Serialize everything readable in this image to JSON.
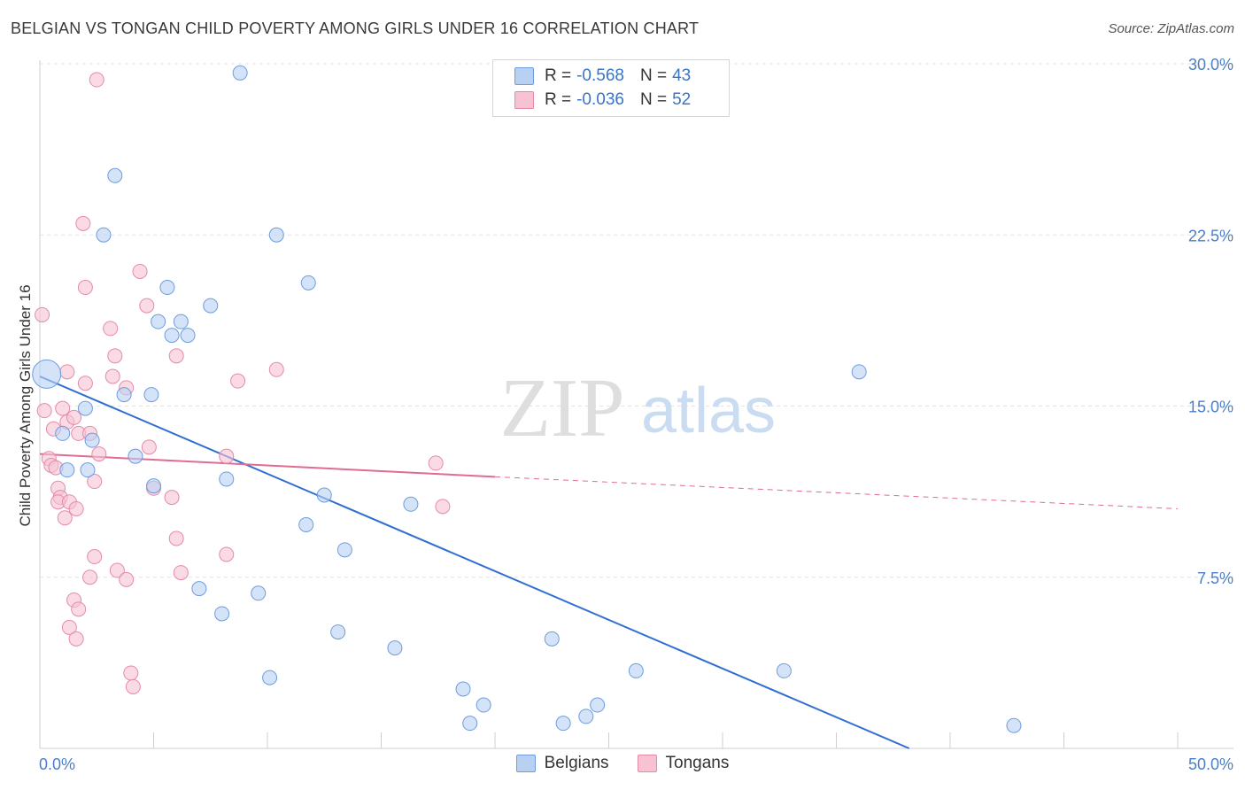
{
  "header": {
    "title": "BELGIAN VS TONGAN CHILD POVERTY AMONG GIRLS UNDER 16 CORRELATION CHART",
    "source": "Source: ZipAtlas.com"
  },
  "watermark": {
    "zip": "ZIP",
    "atlas": "atlas"
  },
  "legend": {
    "rows": [
      {
        "r_label": "R =",
        "r_value": "-0.568",
        "n_label": "N =",
        "n_value": "43"
      },
      {
        "r_label": "R =",
        "r_value": "-0.036",
        "n_label": "N =",
        "n_value": "52"
      }
    ]
  },
  "bottom_legend": {
    "belgians": "Belgians",
    "tongans": "Tongans"
  },
  "colors": {
    "belgians_fill": "#b8d1f3",
    "belgians_stroke": "#6d9ddd",
    "belgians_line": "#2f6fd0",
    "tongans_fill": "#f7c3d3",
    "tongans_stroke": "#e68aa8",
    "tongans_line": "#e06b93",
    "grid": "#e3e3e3",
    "tick_text": "#4a7ec8"
  },
  "chart_data": {
    "type": "scatter",
    "title": "BELGIAN VS TONGAN CHILD POVERTY AMONG GIRLS UNDER 16 CORRELATION CHART",
    "ylabel": "Child Poverty Among Girls Under 16",
    "xlabel": "",
    "xlim": [
      0,
      50
    ],
    "ylim": [
      0,
      30
    ],
    "x_tick_labels": [
      "0.0%",
      "50.0%"
    ],
    "y_ticks": [
      7.5,
      15.0,
      22.5,
      30.0
    ],
    "y_tick_labels": [
      "7.5%",
      "15.0%",
      "22.5%",
      "30.0%"
    ],
    "grid": "horizontal dashed",
    "series": [
      {
        "name": "Belgians",
        "r": -0.568,
        "n": 43,
        "trend": {
          "x": [
            0,
            38.2
          ],
          "y": [
            16.3,
            0
          ]
        },
        "points": [
          [
            0.3,
            16.4
          ],
          [
            1.2,
            12.2
          ],
          [
            1.0,
            13.8
          ],
          [
            2.0,
            14.9
          ],
          [
            2.3,
            13.5
          ],
          [
            2.1,
            12.2
          ],
          [
            3.3,
            25.1
          ],
          [
            2.8,
            22.5
          ],
          [
            5.2,
            18.7
          ],
          [
            5.6,
            20.2
          ],
          [
            5.8,
            18.1
          ],
          [
            6.2,
            18.7
          ],
          [
            6.5,
            18.1
          ],
          [
            7.5,
            19.4
          ],
          [
            4.2,
            12.8
          ],
          [
            4.9,
            15.5
          ],
          [
            3.7,
            15.5
          ],
          [
            8.2,
            11.8
          ],
          [
            7.0,
            7.0
          ],
          [
            8.0,
            5.9
          ],
          [
            9.6,
            6.8
          ],
          [
            8.8,
            29.6
          ],
          [
            10.4,
            22.5
          ],
          [
            11.8,
            20.4
          ],
          [
            10.1,
            3.1
          ],
          [
            11.7,
            9.8
          ],
          [
            12.5,
            11.1
          ],
          [
            13.4,
            8.7
          ],
          [
            13.1,
            5.1
          ],
          [
            16.3,
            10.7
          ],
          [
            15.6,
            4.4
          ],
          [
            18.6,
            2.6
          ],
          [
            18.9,
            1.1
          ],
          [
            19.5,
            1.9
          ],
          [
            22.5,
            4.8
          ],
          [
            23.0,
            1.1
          ],
          [
            24.0,
            1.4
          ],
          [
            24.5,
            1.9
          ],
          [
            26.2,
            3.4
          ],
          [
            32.7,
            3.4
          ],
          [
            36.0,
            16.5
          ],
          [
            42.8,
            1.0
          ],
          [
            5.0,
            11.5
          ]
        ]
      },
      {
        "name": "Tongans",
        "r": -0.036,
        "n": 52,
        "trend": {
          "x": [
            0,
            20
          ],
          "y": [
            12.9,
            11.9
          ]
        },
        "trend_extended": {
          "x": [
            20,
            50
          ],
          "y": [
            11.9,
            10.5
          ]
        },
        "points": [
          [
            0.1,
            19.0
          ],
          [
            0.2,
            14.8
          ],
          [
            0.4,
            12.7
          ],
          [
            0.5,
            12.4
          ],
          [
            0.6,
            14.0
          ],
          [
            0.7,
            12.3
          ],
          [
            0.8,
            11.4
          ],
          [
            0.9,
            11.0
          ],
          [
            0.8,
            10.8
          ],
          [
            1.2,
            16.5
          ],
          [
            1.0,
            14.9
          ],
          [
            1.2,
            14.3
          ],
          [
            1.1,
            10.1
          ],
          [
            1.3,
            10.8
          ],
          [
            1.5,
            14.5
          ],
          [
            1.6,
            10.5
          ],
          [
            1.7,
            13.8
          ],
          [
            2.0,
            16.0
          ],
          [
            2.0,
            20.2
          ],
          [
            1.9,
            23.0
          ],
          [
            2.2,
            13.8
          ],
          [
            2.4,
            11.7
          ],
          [
            2.6,
            12.9
          ],
          [
            2.5,
            29.3
          ],
          [
            3.1,
            18.4
          ],
          [
            3.2,
            16.3
          ],
          [
            3.3,
            17.2
          ],
          [
            3.4,
            7.8
          ],
          [
            3.8,
            15.8
          ],
          [
            3.8,
            7.4
          ],
          [
            4.4,
            20.9
          ],
          [
            4.7,
            19.4
          ],
          [
            4.8,
            13.2
          ],
          [
            5.0,
            11.4
          ],
          [
            5.8,
            11.0
          ],
          [
            6.0,
            17.2
          ],
          [
            6.0,
            9.2
          ],
          [
            6.2,
            7.7
          ],
          [
            8.2,
            12.8
          ],
          [
            8.2,
            8.5
          ],
          [
            8.7,
            16.1
          ],
          [
            10.4,
            16.6
          ],
          [
            2.2,
            7.5
          ],
          [
            2.4,
            8.4
          ],
          [
            1.5,
            6.5
          ],
          [
            1.7,
            6.1
          ],
          [
            1.3,
            5.3
          ],
          [
            1.6,
            4.8
          ],
          [
            4.0,
            3.3
          ],
          [
            4.1,
            2.7
          ],
          [
            17.4,
            12.5
          ],
          [
            17.7,
            10.6
          ]
        ]
      }
    ]
  }
}
